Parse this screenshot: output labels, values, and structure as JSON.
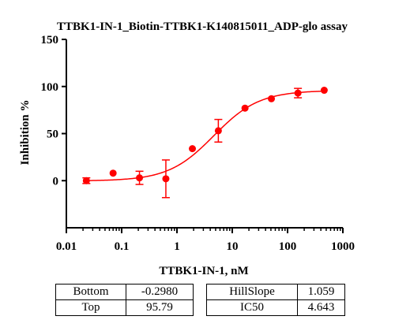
{
  "chart_data": {
    "type": "scatter",
    "title": "TTBK1-IN-1_Biotin-TTBK1-K140815011_ADP-glo assay",
    "xlabel": "TTBK1-IN-1, nM",
    "ylabel": "Inhibition %",
    "x_scale": "log",
    "xlim": [
      0.01,
      1000
    ],
    "ylim": [
      -50,
      150
    ],
    "x_ticks": [
      "0.01",
      "0.1",
      "1",
      "10",
      "100",
      "1000"
    ],
    "y_ticks": [
      "0",
      "50",
      "100",
      "150"
    ],
    "color": "#ff0000",
    "series": [
      {
        "points": [
          {
            "x": 0.023,
            "y": 0,
            "err": 3
          },
          {
            "x": 0.07,
            "y": 8,
            "err": 0
          },
          {
            "x": 0.21,
            "y": 3,
            "err": 7
          },
          {
            "x": 0.63,
            "y": 2,
            "err": 20
          },
          {
            "x": 1.9,
            "y": 34,
            "err": 0
          },
          {
            "x": 5.6,
            "y": 53,
            "err": 12
          },
          {
            "x": 17,
            "y": 77,
            "err": 0
          },
          {
            "x": 51,
            "y": 87,
            "err": 0
          },
          {
            "x": 154,
            "y": 93,
            "err": 5
          },
          {
            "x": 460,
            "y": 96,
            "err": 0
          }
        ],
        "fit": {
          "model": "4PL",
          "bottom": -0.298,
          "top": 95.79,
          "ic50": 4.643,
          "hillslope": 1.059
        }
      }
    ]
  },
  "params": {
    "bottom_label": "Bottom",
    "bottom_value": "-0.2980",
    "top_label": "Top",
    "top_value": "95.79",
    "hillslope_label": "HillSlope",
    "hillslope_value": "1.059",
    "ic50_label": "IC50",
    "ic50_value": "4.643"
  }
}
